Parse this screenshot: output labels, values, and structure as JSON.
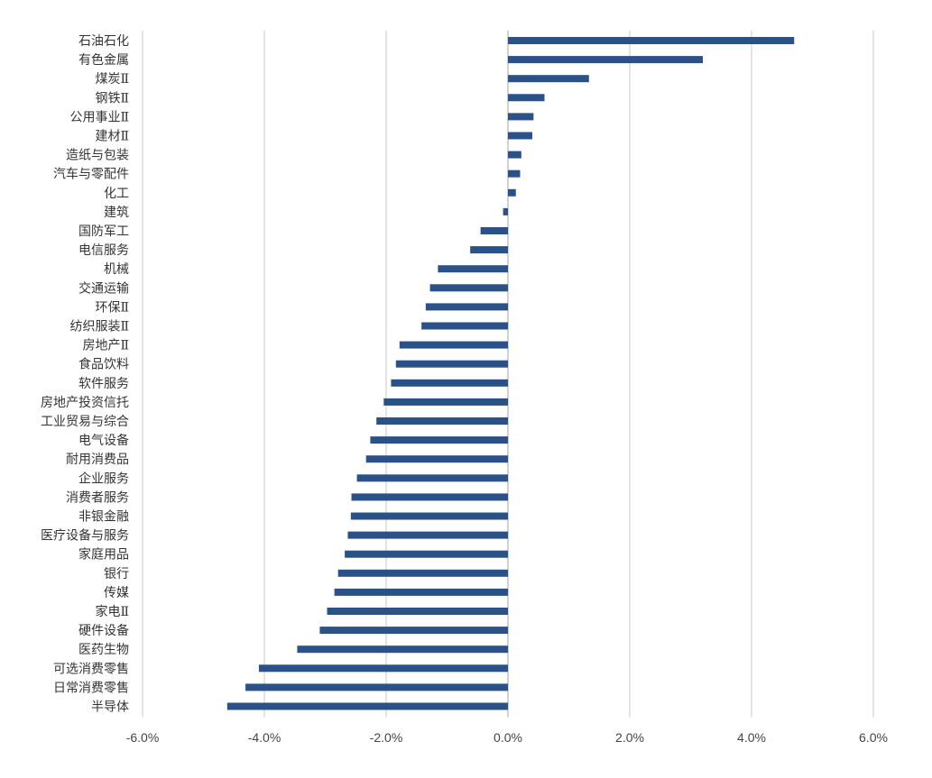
{
  "chart_data": {
    "type": "bar",
    "orientation": "horizontal",
    "title": "",
    "xlabel": "",
    "ylabel": "",
    "xlim": [
      -0.06,
      0.06
    ],
    "x_ticks": [
      -0.06,
      -0.04,
      -0.02,
      0,
      0.02,
      0.04,
      0.06
    ],
    "x_tick_labels": [
      "-6.0%",
      "-4.0%",
      "-2.0%",
      "0.0%",
      "2.0%",
      "4.0%",
      "6.0%"
    ],
    "grid": "vertical",
    "legend": "none",
    "bar_color": "#2B5189",
    "categories": [
      "石油石化",
      "有色金属",
      "煤炭Ⅱ",
      "钢铁Ⅱ",
      "公用事业Ⅱ",
      "建材Ⅱ",
      "造纸与包装",
      "汽车与零配件",
      "化工",
      "建筑",
      "国防军工",
      "电信服务",
      "机械",
      "交通运输",
      "环保Ⅱ",
      "纺织服装Ⅱ",
      "房地产Ⅱ",
      "食品饮料",
      "软件服务",
      "房地产投资信托",
      "工业贸易与综合",
      "电气设备",
      "耐用消费品",
      "企业服务",
      "消费者服务",
      "非银金融",
      "医疗设备与服务",
      "家庭用品",
      "银行",
      "传媒",
      "家电Ⅱ",
      "硬件设备",
      "医药生物",
      "可选消费零售",
      "日常消费零售",
      "半导体"
    ],
    "values": [
      0.047,
      0.032,
      0.0133,
      0.006,
      0.0042,
      0.004,
      0.0022,
      0.002,
      0.0013,
      -0.0008,
      -0.0045,
      -0.0062,
      -0.0115,
      -0.0128,
      -0.0135,
      -0.0142,
      -0.0178,
      -0.0184,
      -0.0192,
      -0.0204,
      -0.0216,
      -0.0226,
      -0.0233,
      -0.0248,
      -0.0257,
      -0.0258,
      -0.0263,
      -0.0268,
      -0.0279,
      -0.0285,
      -0.0297,
      -0.0309,
      -0.0346,
      -0.0409,
      -0.0431,
      -0.0461
    ]
  }
}
